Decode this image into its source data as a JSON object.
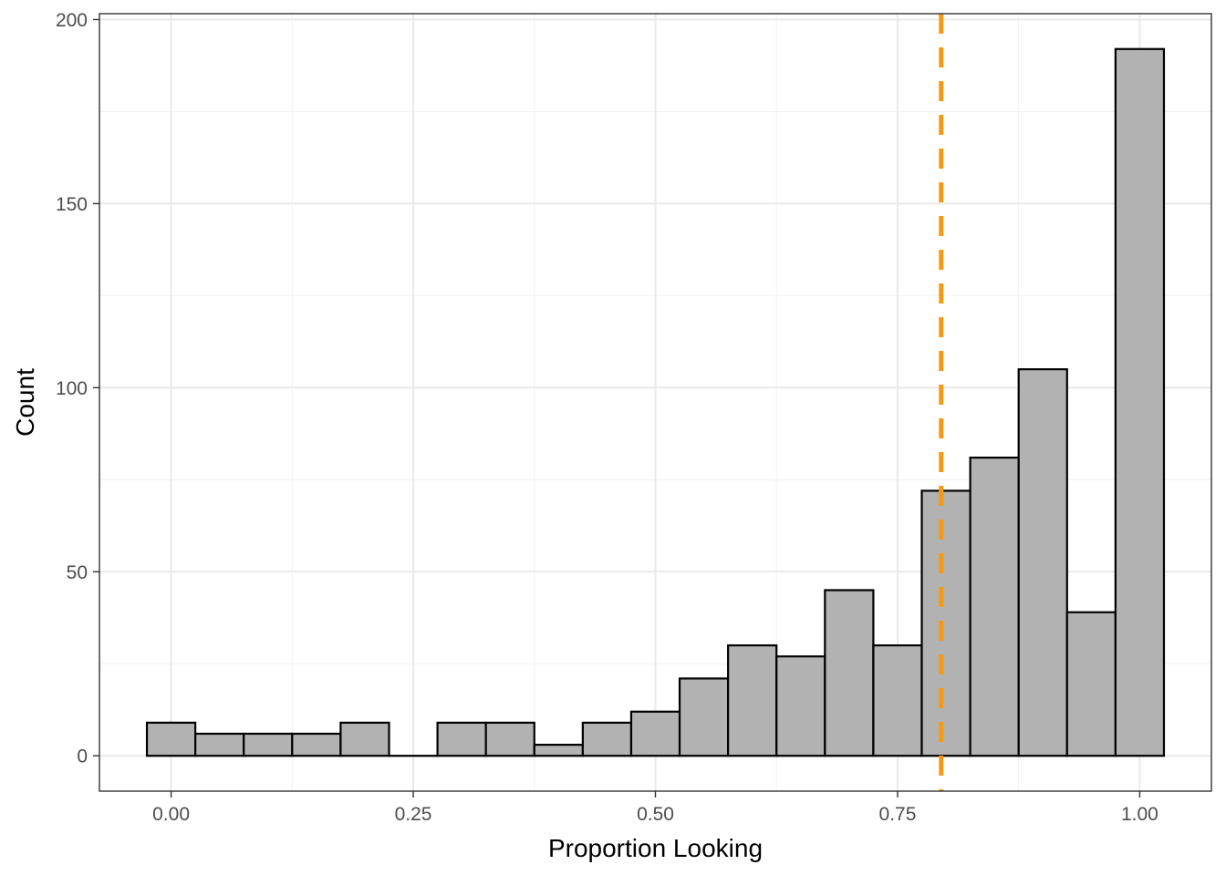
{
  "chart_data": {
    "type": "bar",
    "title": "",
    "xlabel": "Proportion Looking",
    "ylabel": "Count",
    "xlim": [
      -0.074,
      1.074
    ],
    "ylim": [
      -9.6,
      201.6
    ],
    "x_ticks": [
      {
        "value": 0.0,
        "label": "0.00"
      },
      {
        "value": 0.25,
        "label": "0.25"
      },
      {
        "value": 0.5,
        "label": "0.50"
      },
      {
        "value": 0.75,
        "label": "0.75"
      },
      {
        "value": 1.0,
        "label": "1.00"
      }
    ],
    "y_ticks": [
      {
        "value": 0,
        "label": "0"
      },
      {
        "value": 50,
        "label": "50"
      },
      {
        "value": 100,
        "label": "100"
      },
      {
        "value": 150,
        "label": "150"
      },
      {
        "value": 200,
        "label": "200"
      }
    ],
    "bin_width": 0.05,
    "bins": [
      0.0,
      0.05,
      0.1,
      0.15,
      0.2,
      0.25,
      0.3,
      0.35,
      0.4,
      0.45,
      0.5,
      0.55,
      0.6,
      0.65,
      0.7,
      0.75,
      0.8,
      0.85,
      0.9,
      0.95,
      1.0
    ],
    "values": [
      9,
      6,
      6,
      6,
      9,
      0,
      9,
      9,
      3,
      9,
      12,
      21,
      30,
      27,
      45,
      30,
      72,
      81,
      105,
      39,
      192
    ],
    "reference_line": {
      "x": 0.795,
      "style": "dashed",
      "color": "#f59a12"
    },
    "colors": {
      "bar_fill": "#b2b2b2",
      "bar_stroke": "#000000",
      "grid_major": "#ebebeb",
      "grid_minor": "#f2f2f2",
      "panel_border": "#333333"
    },
    "grid": true
  }
}
